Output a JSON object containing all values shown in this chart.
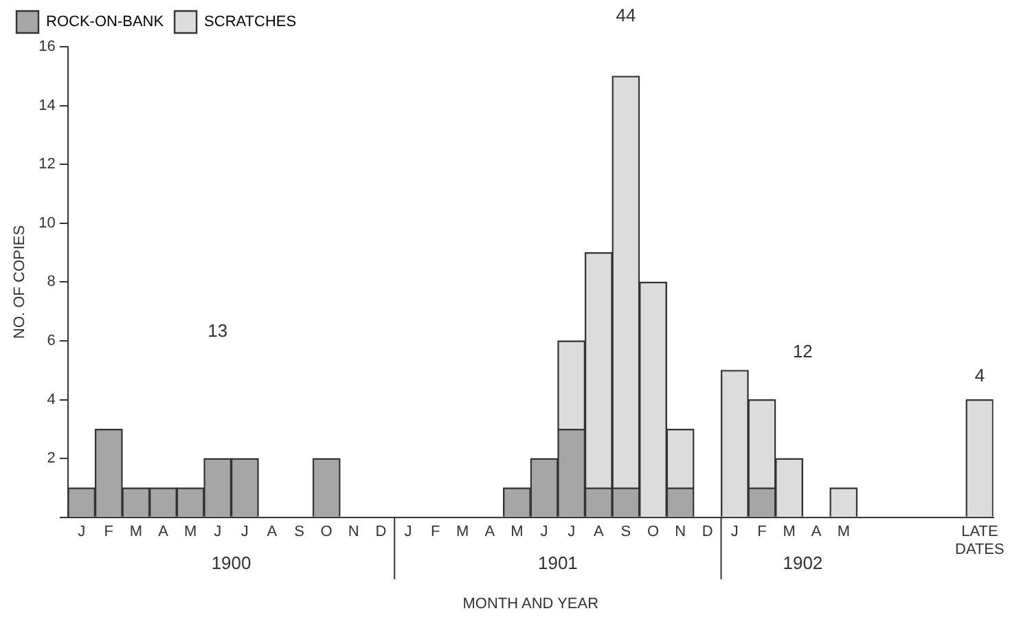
{
  "chart_data": {
    "type": "bar",
    "stacked": true,
    "xlabel": "MONTH AND YEAR",
    "ylabel": "NO. OF COPIES",
    "categories": [
      "J",
      "F",
      "M",
      "A",
      "M",
      "J",
      "J",
      "A",
      "S",
      "O",
      "N",
      "D",
      "J",
      "F",
      "M",
      "A",
      "M",
      "J",
      "J",
      "A",
      "S",
      "O",
      "N",
      "D",
      "J",
      "F",
      "M",
      "A",
      "M",
      null,
      null,
      null,
      null,
      "LATE DATES"
    ],
    "series": [
      {
        "name": "ROCK-ON-BANK",
        "color": "#a6a6a6",
        "values": [
          1,
          3,
          1,
          1,
          1,
          2,
          2,
          0,
          0,
          2,
          0,
          0,
          0,
          0,
          0,
          0,
          1,
          2,
          3,
          1,
          1,
          0,
          1,
          0,
          0,
          1,
          0,
          0,
          0,
          null,
          null,
          null,
          null,
          0
        ]
      },
      {
        "name": "SCRATCHES",
        "color": "#dcdcdc",
        "values": [
          0,
          0,
          0,
          0,
          0,
          0,
          0,
          0,
          0,
          0,
          0,
          0,
          0,
          0,
          0,
          0,
          0,
          0,
          3,
          8,
          14,
          8,
          2,
          0,
          5,
          3,
          2,
          0,
          1,
          null,
          null,
          null,
          null,
          4
        ]
      }
    ],
    "ylim": [
      0,
      16
    ],
    "yticks": [
      {
        "value": 0,
        "label": null
      },
      2,
      4,
      6,
      8,
      10,
      12,
      14,
      16
    ],
    "grid": false,
    "legend": "top left",
    "annotations": [
      "13",
      "44",
      "12",
      "4",
      "1900",
      "1901",
      "1902"
    ]
  }
}
